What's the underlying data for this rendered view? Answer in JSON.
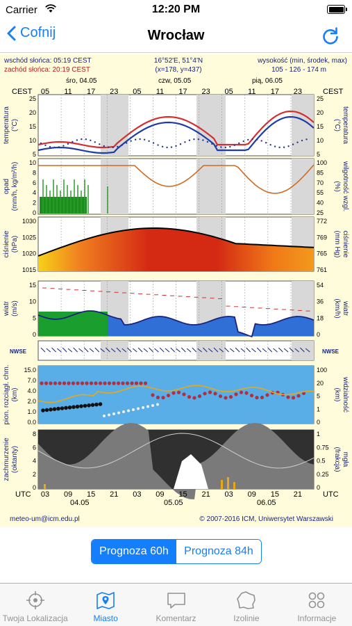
{
  "status_bar": {
    "carrier": "Carrier",
    "time": "12:20 PM"
  },
  "nav": {
    "back_label": "Cofnij",
    "title": "Wrocław"
  },
  "meteogram": {
    "sunrise": "wschód słońca: 05:19 CEST",
    "sunset": "zachód słońca: 20:19 CEST",
    "coords": "16°52'E, 51°4'N",
    "grid": "(x=178, y=437)",
    "height_label": "wysokość (min, środek, max)",
    "height_values": "105 - 126 - 174 m",
    "tz_top": "CEST",
    "tz_bottom": "UTC",
    "days_top": [
      "śro, 04.05",
      "czw, 05.05",
      "pią, 06.05"
    ],
    "days_bottom": [
      "04.05",
      "05.05",
      "06.05"
    ],
    "hours_top": [
      "05",
      "11",
      "17",
      "23",
      "05",
      "11",
      "17",
      "23",
      "05",
      "11",
      "17",
      "23"
    ],
    "hours_bottom": [
      "03",
      "09",
      "15",
      "21",
      "03",
      "09",
      "15",
      "21",
      "03",
      "09",
      "15",
      "21"
    ],
    "panels": [
      {
        "left_label": [
          "temperatura",
          "(°C)"
        ],
        "right_label": [
          "temperatura",
          "(°C)"
        ],
        "left_ticks": [
          "25",
          "20",
          "15",
          "10",
          "5"
        ],
        "right_ticks": [
          "25",
          "20",
          "15",
          "10",
          "5"
        ]
      },
      {
        "left_label": [
          "opad",
          "(mm/h, kg/m²/h)"
        ],
        "right_label": [
          "wilgotność wzgl.",
          "(%)"
        ],
        "left_ticks": [
          "10",
          "8",
          "6",
          "4",
          "2",
          "0"
        ],
        "right_ticks": [
          "100",
          "85",
          "70",
          "55",
          "40",
          "25"
        ]
      },
      {
        "left_label": [
          "ciśnienie",
          "(hPa)"
        ],
        "right_label": [
          "ciśnienie",
          "(mm Hg)"
        ],
        "left_ticks": [
          "1030",
          "1025",
          "1020",
          "1015"
        ],
        "right_ticks": [
          "772",
          "769",
          "765",
          "761"
        ]
      },
      {
        "left_label": [
          "wiatr",
          "(m/s)"
        ],
        "right_label": [
          "wiatr",
          "(km/h)"
        ],
        "left_ticks": [
          "15",
          "10",
          "5",
          "0"
        ],
        "right_ticks": [
          "54",
          "36",
          "18",
          "0"
        ]
      },
      {
        "left_label": [
          "",
          ""
        ],
        "right_label": [
          "",
          ""
        ],
        "left_ticks": [],
        "right_ticks": []
      },
      {
        "left_label": [
          "pion. rozciągł. chm.",
          "(km)"
        ],
        "right_label": [
          "widzialność",
          "(km)"
        ],
        "left_ticks": [
          "15.0",
          "7.0",
          "4.0",
          "2.0",
          "1.0",
          "0.0"
        ],
        "right_ticks": [
          "100",
          "20",
          "5",
          "1",
          "0"
        ]
      },
      {
        "left_label": [
          "zachmurzenie",
          "(oktanty)"
        ],
        "right_label": [
          "mgła",
          "(frakcja)"
        ],
        "left_ticks": [
          "8",
          "6",
          "4",
          "2",
          "0"
        ],
        "right_ticks": [
          "1",
          "0.75",
          "0.5",
          "0.25",
          "0"
        ]
      }
    ],
    "compass": "NWSE",
    "email": "meteo-um@icm.edu.pl",
    "copyright": "© 2007-2016 ICM, Uniwersytet Warszawski"
  },
  "forecast_toggle": {
    "options": [
      "Prognoza 60h",
      "Prognoza 84h"
    ],
    "selected": "Prognoza 60h"
  },
  "tabs": [
    {
      "label": "Twoja Lokalizacja",
      "icon": "crosshair-icon",
      "active": false
    },
    {
      "label": "Miasto",
      "icon": "map-icon",
      "active": true
    },
    {
      "label": "Komentarz",
      "icon": "comment-icon",
      "active": false
    },
    {
      "label": "Izolinie",
      "icon": "map-outline-icon",
      "active": false
    },
    {
      "label": "Informacje",
      "icon": "grid-icon",
      "active": false
    }
  ],
  "colors": {
    "accent": "#147efb",
    "tab_inactive": "#929292"
  }
}
